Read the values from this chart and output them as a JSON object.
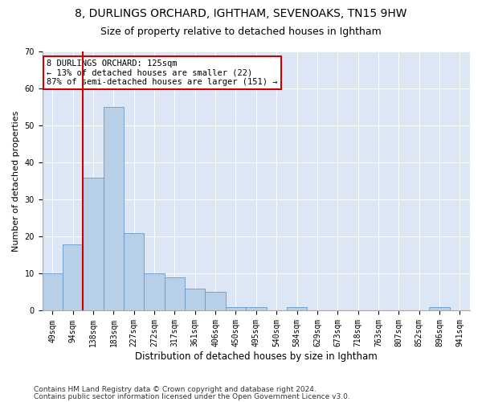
{
  "title1": "8, DURLINGS ORCHARD, IGHTHAM, SEVENOAKS, TN15 9HW",
  "title2": "Size of property relative to detached houses in Ightham",
  "xlabel": "Distribution of detached houses by size in Ightham",
  "ylabel": "Number of detached properties",
  "categories": [
    "49sqm",
    "94sqm",
    "138sqm",
    "183sqm",
    "227sqm",
    "272sqm",
    "317sqm",
    "361sqm",
    "406sqm",
    "450sqm",
    "495sqm",
    "540sqm",
    "584sqm",
    "629sqm",
    "673sqm",
    "718sqm",
    "763sqm",
    "807sqm",
    "852sqm",
    "896sqm",
    "941sqm"
  ],
  "values": [
    10,
    18,
    36,
    55,
    21,
    10,
    9,
    6,
    5,
    1,
    1,
    0,
    1,
    0,
    0,
    0,
    0,
    0,
    0,
    1,
    0
  ],
  "bar_color": "#b8cfe8",
  "bar_edge_color": "#6699cc",
  "vline_color": "#cc0000",
  "vline_x_index": 2,
  "annotation_text": "8 DURLINGS ORCHARD: 125sqm\n← 13% of detached houses are smaller (22)\n87% of semi-detached houses are larger (151) →",
  "annotation_box_color": "#ffffff",
  "annotation_box_edge": "#cc0000",
  "ylim": [
    0,
    70
  ],
  "yticks": [
    0,
    10,
    20,
    30,
    40,
    50,
    60,
    70
  ],
  "bg_color": "#dce6f5",
  "footer_line1": "Contains HM Land Registry data © Crown copyright and database right 2024.",
  "footer_line2": "Contains public sector information licensed under the Open Government Licence v3.0.",
  "title1_fontsize": 10,
  "title2_fontsize": 9,
  "xlabel_fontsize": 8.5,
  "ylabel_fontsize": 8,
  "tick_fontsize": 7,
  "footer_fontsize": 6.5,
  "annotation_fontsize": 7.5
}
